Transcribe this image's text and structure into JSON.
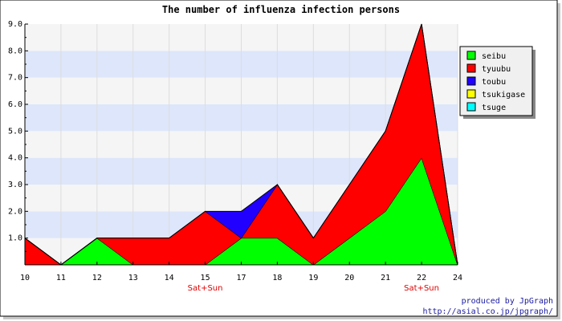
{
  "chart_data": {
    "type": "area",
    "stacked": true,
    "title": "The number of influenza infection persons",
    "categories": [
      "10",
      "11",
      "12",
      "13",
      "14",
      "15",
      "17",
      "18",
      "19",
      "20",
      "21",
      "22",
      "24"
    ],
    "ylim": [
      0,
      9
    ],
    "yticks": [
      "1.0",
      "2.0",
      "3.0",
      "4.0",
      "5.0",
      "6.0",
      "7.0",
      "8.0",
      "9.0"
    ],
    "series": [
      {
        "name": "seibu",
        "color": "#00ff00",
        "values": [
          0,
          0,
          1,
          0,
          0,
          0,
          1,
          1,
          0,
          1,
          2,
          4,
          0
        ]
      },
      {
        "name": "tyuubu",
        "color": "#ff0000",
        "values": [
          1,
          0,
          0,
          1,
          1,
          2,
          0,
          2,
          1,
          2,
          3,
          5,
          0
        ]
      },
      {
        "name": "toubu",
        "color": "#2200ff",
        "values": [
          0,
          0,
          0,
          0,
          0,
          0,
          1,
          0,
          0,
          0,
          0,
          0,
          0
        ]
      },
      {
        "name": "tsukigase",
        "color": "#ffff00",
        "values": [
          0,
          0,
          0,
          0,
          0,
          0,
          0,
          0,
          0,
          0,
          0,
          0,
          0
        ]
      },
      {
        "name": "tsuge",
        "color": "#00ffff",
        "values": [
          0,
          0,
          0,
          0,
          0,
          0,
          0,
          0,
          0,
          0,
          0,
          0,
          0
        ]
      }
    ],
    "weekend_markers": [
      {
        "category": "15",
        "text": "Sat+Sun"
      },
      {
        "category": "22",
        "text": "Sat+Sun"
      }
    ],
    "grid": true,
    "legend_position": "right"
  },
  "credit": {
    "line1": "produced by JpGraph",
    "line2": "http://asial.co.jp/jpgraph/"
  }
}
